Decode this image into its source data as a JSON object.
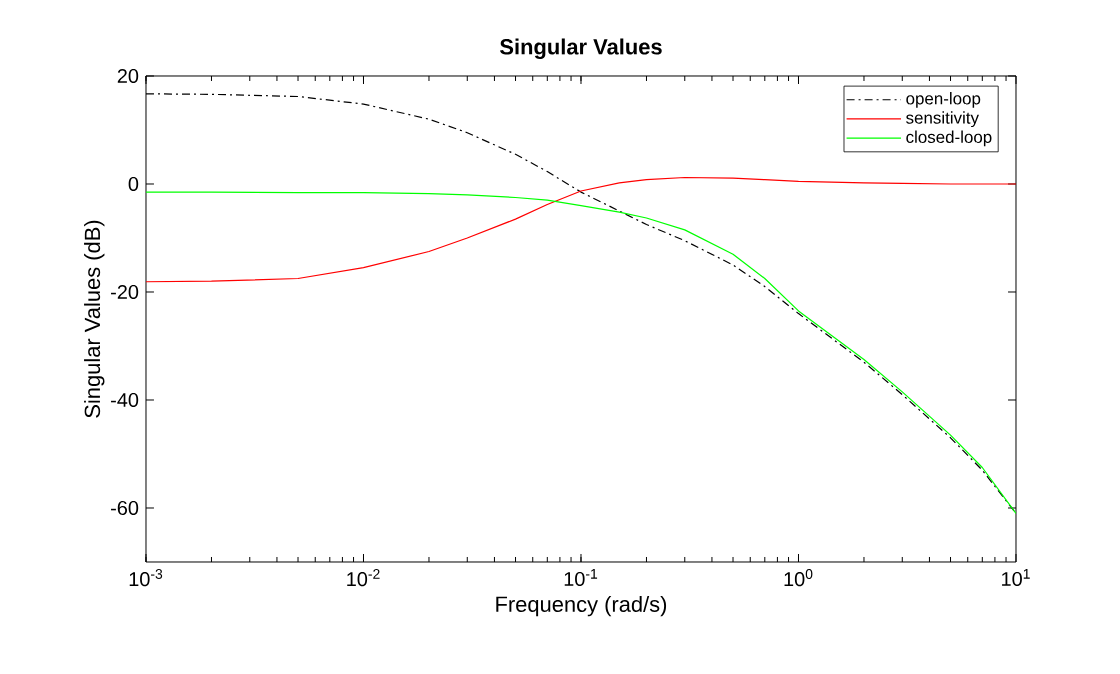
{
  "chart_data": {
    "type": "line",
    "title": "Singular Values",
    "xlabel": "Frequency (rad/s)",
    "ylabel": "Singular Values (dB)",
    "x": [
      0.001,
      0.002,
      0.005,
      0.01,
      0.02,
      0.03,
      0.05,
      0.07,
      0.1,
      0.15,
      0.2,
      0.3,
      0.5,
      0.7,
      1,
      2,
      3,
      5,
      7,
      10
    ],
    "series": [
      {
        "name": "open-loop",
        "color": "#000000",
        "line_style": "dashdot",
        "values": [
          16.7,
          16.6,
          16.2,
          14.8,
          12.0,
          9.5,
          5.5,
          2.3,
          -1.5,
          -5,
          -7.5,
          -10.5,
          -15,
          -19,
          -24,
          -33,
          -39,
          -47,
          -53,
          -61
        ]
      },
      {
        "name": "sensitivity",
        "color": "#ff0000",
        "line_style": "solid",
        "values": [
          -18.1,
          -18.0,
          -17.5,
          -15.5,
          -12.5,
          -10,
          -6.5,
          -3.8,
          -1.3,
          0.2,
          0.8,
          1.2,
          1.1,
          0.8,
          0.5,
          0.2,
          0.1,
          0,
          0,
          0
        ]
      },
      {
        "name": "closed-loop",
        "color": "#00ff00",
        "line_style": "solid",
        "values": [
          -1.5,
          -1.5,
          -1.6,
          -1.6,
          -1.8,
          -2.0,
          -2.5,
          -3.0,
          -4.0,
          -5.2,
          -6.3,
          -8.5,
          -13,
          -17.5,
          -23.5,
          -32.5,
          -38.5,
          -46.5,
          -52.5,
          -61
        ]
      }
    ],
    "log": "x",
    "grid": false,
    "legend": "top right",
    "marker": "none",
    "xlim": [
      0.001,
      10
    ],
    "ylim": [
      -70,
      20
    ],
    "xticks": [
      {
        "value": 0.001,
        "label": "10$^{-3}$"
      },
      {
        "value": 0.01,
        "label": "10$^{-2}$"
      },
      {
        "value": 0.1,
        "label": "10$^{-1}$"
      },
      {
        "value": 1,
        "label": "10$^{0}$"
      },
      {
        "value": 10,
        "label": "10$^{1}$"
      }
    ],
    "yticks": [
      -60,
      -40,
      -20,
      0,
      20
    ]
  }
}
